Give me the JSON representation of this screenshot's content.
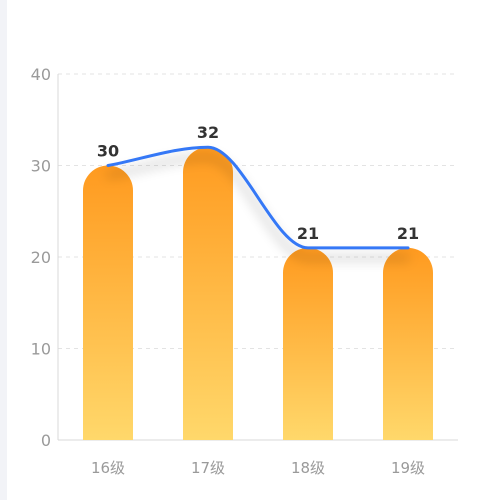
{
  "chart_data": {
    "type": "bar",
    "categories": [
      "16级",
      "17级",
      "18级",
      "19级"
    ],
    "values": [
      30,
      32,
      21,
      21
    ],
    "line_series_values": [
      30,
      32,
      21,
      21
    ],
    "ylim": [
      0,
      40
    ],
    "yticks": [
      "0",
      "10",
      "20",
      "30",
      "40"
    ],
    "grid": true,
    "data_labels": [
      "30",
      "32",
      "21",
      "21"
    ],
    "title": "",
    "xlabel": "",
    "ylabel": "",
    "colors": {
      "bar_top": "#ff9a1f",
      "bar_bottom": "#ffd86b",
      "line": "#3478f6",
      "grid": "#e3e3e3",
      "axis": "#d8d8d8"
    }
  }
}
